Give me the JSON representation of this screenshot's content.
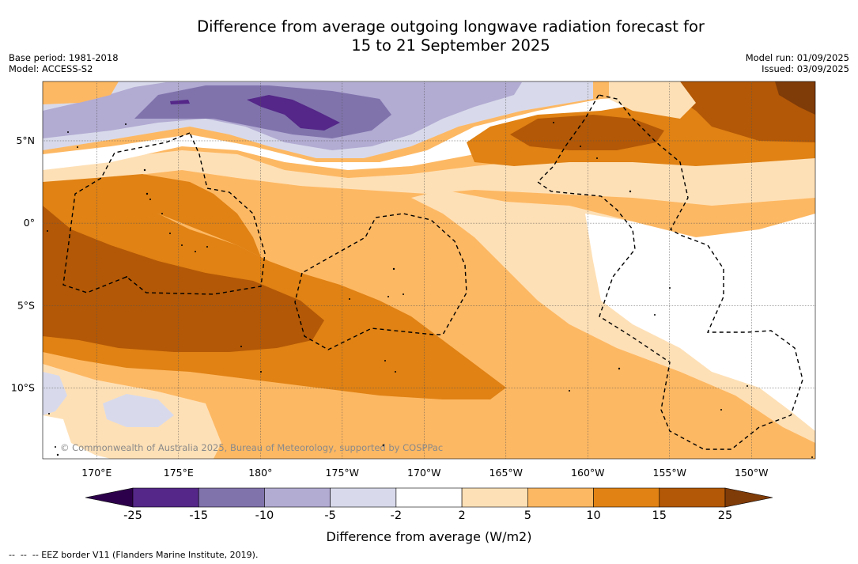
{
  "title_line1": "Difference from average outgoing longwave radiation forecast for",
  "title_line2": "15 to 21 September 2025",
  "base_period": "Base period: 1981-2018",
  "model": "Model: ACCESS-S2",
  "model_run": "Model run: 01/09/2025",
  "issued": "Issued: 03/09/2025",
  "copyright": "© Commonwealth of Australia 2025, Bureau of Meteorology, supported by COSPPac",
  "map": {
    "lon_ticks": [
      "170°E",
      "175°E",
      "180°",
      "175°W",
      "170°W",
      "165°W",
      "160°W",
      "155°W",
      "150°W"
    ],
    "lat_ticks": [
      "5°N",
      "0°",
      "5°S",
      "10°S"
    ],
    "extent": {
      "lon_min_deg_east": 166.7,
      "lon_max_deg_east": 213.9,
      "lat_min": -14.3,
      "lat_max": 8.6
    }
  },
  "colorbar": {
    "title": "Difference from average (W/m2)",
    "levels": [
      "-25",
      "-15",
      "-10",
      "-5",
      "-2",
      "2",
      "5",
      "10",
      "15",
      "25"
    ],
    "colors": [
      "#542788",
      "#8073ac",
      "#b2abd2",
      "#d8daeb",
      "#ffffff",
      "#fee0b6",
      "#fdb863",
      "#e08214",
      "#b35806"
    ],
    "under_color": "#2d004b",
    "over_color": "#7f3b08"
  },
  "footnote": "--  --  -- EEZ border V11 (Flanders Marine Institute, 2019)."
}
